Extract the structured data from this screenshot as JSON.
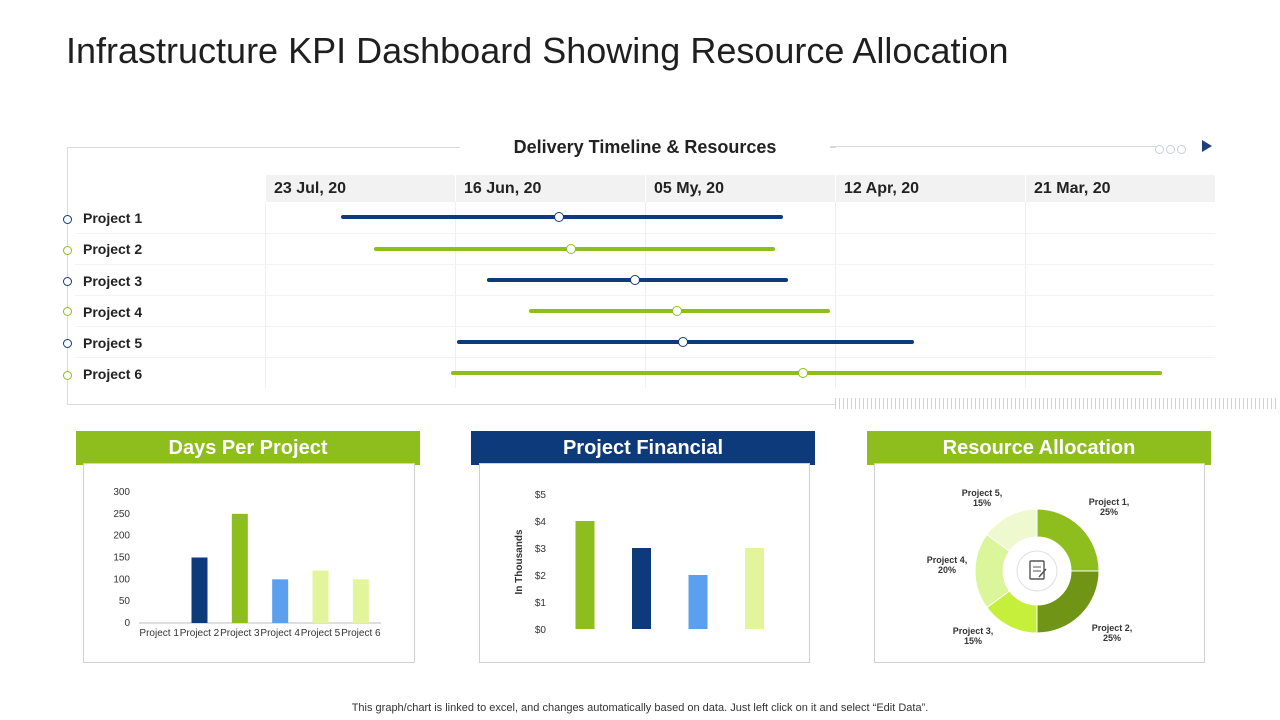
{
  "title": "Infrastructure KPI Dashboard Showing Resource Allocation",
  "timeline": {
    "title": "Delivery Timeline & Resources",
    "dates": [
      "23 Jul, 20",
      "16 Jun, 20",
      "05 My, 20",
      "12 Apr, 20",
      "21 Mar, 20"
    ],
    "projects": [
      {
        "label": "Project 1",
        "color": "#0d3a7a"
      },
      {
        "label": "Project 2",
        "color": "#8ebd1e"
      },
      {
        "label": "Project 3",
        "color": "#0d3a7a"
      },
      {
        "label": "Project 4",
        "color": "#8ebd1e"
      },
      {
        "label": "Project 5",
        "color": "#0d3a7a"
      },
      {
        "label": "Project 6",
        "color": "#8ebd1e"
      }
    ]
  },
  "panels": {
    "days": {
      "title": "Days Per Project",
      "color": "#8ebd1e"
    },
    "financial": {
      "title": "Project Financial",
      "color": "#0d3a7a"
    },
    "resource": {
      "title": "Resource Allocation",
      "color": "#8ebd1e"
    }
  },
  "chart_data": [
    {
      "type": "bar",
      "title": "Days Per Project",
      "categories": [
        "Project 1",
        "Project 2",
        "Project 3",
        "Project 4",
        "Project 5",
        "Project 6"
      ],
      "values": [
        0,
        150,
        250,
        100,
        120,
        100
      ],
      "colors": [
        "#0d3a7a",
        "#0d3a7a",
        "#8ebd1e",
        "#5aa0ef",
        "#e2f59a",
        "#e2f59a"
      ],
      "yticks": [
        "0",
        "50",
        "100",
        "150",
        "200",
        "250",
        "300"
      ],
      "ylim": [
        0,
        300
      ]
    },
    {
      "type": "bar",
      "title": "Project Financial",
      "ylabel": "In Thousands",
      "values": [
        4,
        3,
        2,
        3
      ],
      "colors": [
        "#8ebd1e",
        "#0d3a7a",
        "#5aa0ef",
        "#e2f59a"
      ],
      "yticks": [
        "$0",
        "$1",
        "$2",
        "$3",
        "$4",
        "$5"
      ],
      "ylim": [
        0,
        5
      ]
    },
    {
      "type": "pie",
      "title": "Resource Allocation",
      "labels": [
        "Project 1,",
        "Project 2,",
        "Project 3,",
        "Project 4,",
        "Project 5,"
      ],
      "percents": [
        "25%",
        "25%",
        "15%",
        "20%",
        "15%"
      ],
      "values": [
        25,
        25,
        15,
        20,
        15
      ],
      "colors": [
        "#8ebd1e",
        "#6f9416",
        "#c6ef3c",
        "#dbf59a",
        "#eef9cf"
      ]
    }
  ],
  "footer": "This graph/chart is linked to excel,  and changes automatically based on data. Just left click on it and select “Edit Data”."
}
